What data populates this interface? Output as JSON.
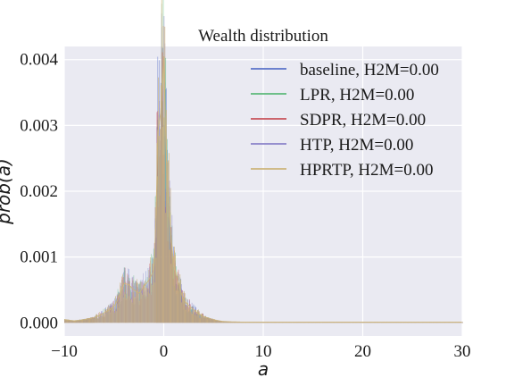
{
  "chart_data": {
    "type": "area",
    "title": "Wealth distribution",
    "xlabel": "a",
    "ylabel": "prob(a)",
    "xlim": [
      -10,
      30
    ],
    "ylim": [
      -0.0002,
      0.0042
    ],
    "x_ticks": [
      -10,
      0,
      10,
      20,
      30
    ],
    "x_tick_labels": [
      "−10",
      "0",
      "10",
      "20",
      "30"
    ],
    "y_ticks": [
      0.0,
      0.001,
      0.002,
      0.003,
      0.004
    ],
    "y_tick_labels": [
      "0.000",
      "0.001",
      "0.002",
      "0.003",
      "0.004"
    ],
    "grid": true,
    "legend_position": "top-right",
    "series": [
      {
        "name": "baseline, H2M=0.00",
        "color": "#5a72c8"
      },
      {
        "name": "LPR, H2M=0.00",
        "color": "#5cb97a"
      },
      {
        "name": "SDPR, H2M=0.00",
        "color": "#c8525a"
      },
      {
        "name": "HTP, H2M=0.00",
        "color": "#8a82c8"
      },
      {
        "name": "HPRTP, H2M=0.00",
        "color": "#ccb47a"
      }
    ],
    "distribution": {
      "x": [
        -10,
        -9,
        -8,
        -7,
        -6,
        -5,
        -4.5,
        -4,
        -3.5,
        -3,
        -2.5,
        -2,
        -1.5,
        -1,
        -0.6,
        -0.3,
        0,
        0.3,
        0.6,
        1,
        1.5,
        2,
        3,
        4,
        5,
        6,
        8,
        10,
        20,
        30
      ],
      "y": [
        5e-05,
        3e-05,
        5e-05,
        8e-05,
        0.00015,
        0.00025,
        0.0004,
        0.0006,
        0.00058,
        0.0005,
        0.00045,
        0.00055,
        0.00065,
        0.0008,
        0.0029,
        0.0032,
        0.00405,
        0.0024,
        0.0016,
        0.0009,
        0.0006,
        0.00035,
        0.0002,
        0.0001,
        5e-05,
        2e-05,
        1e-05,
        1e-05,
        1e-05,
        1e-05
      ]
    }
  }
}
